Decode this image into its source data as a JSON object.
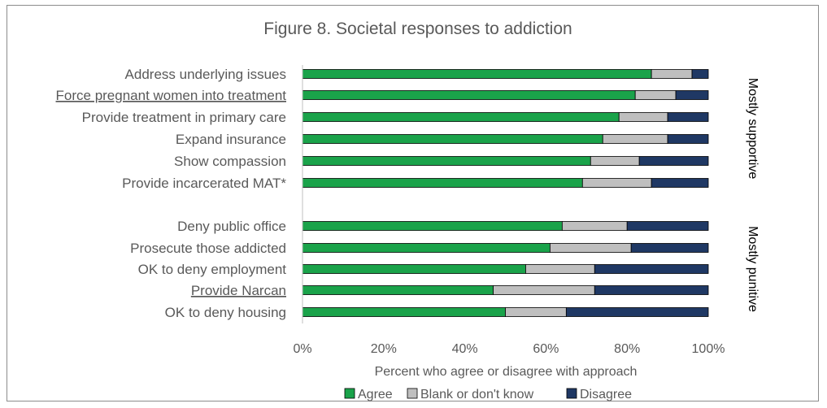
{
  "chart_data": {
    "type": "bar",
    "orientation": "horizontal",
    "stacked": true,
    "title": "Figure 8. Societal responses to addiction",
    "xlabel": "Percent who agree or disagree with approach",
    "ylabel": "",
    "xlim": [
      0,
      100
    ],
    "xticks": [
      "0%",
      "20%",
      "40%",
      "60%",
      "80%",
      "100%"
    ],
    "grid": false,
    "legend_position": "bottom",
    "categories": [
      "Address underlying issues",
      "Force pregnant women into treatment",
      "Provide treatment in primary care",
      "Expand insurance",
      "Show compassion",
      "Provide incarcerated MAT*",
      "Deny public office",
      "Prosecute those addicted",
      "OK to deny employment",
      "Provide Narcan",
      "OK to deny housing"
    ],
    "underlined_categories": [
      "Force pregnant women into treatment",
      "Provide Narcan"
    ],
    "series": [
      {
        "name": "Agree",
        "color": "#1aa34a",
        "values": [
          86,
          82,
          78,
          74,
          71,
          69,
          64,
          61,
          55,
          47,
          50
        ]
      },
      {
        "name": "Blank or don't know",
        "color": "#bfbfbf",
        "values": [
          10,
          10,
          12,
          16,
          12,
          17,
          16,
          20,
          17,
          25,
          15
        ]
      },
      {
        "name": "Disagree",
        "color": "#1f3864",
        "values": [
          4,
          8,
          10,
          10,
          17,
          14,
          20,
          19,
          28,
          28,
          35
        ]
      }
    ],
    "groups": [
      {
        "label": "Mostly supportive",
        "categories": [
          0,
          1,
          2,
          3,
          4,
          5
        ]
      },
      {
        "label": "Mostly punitive",
        "categories": [
          6,
          7,
          8,
          9,
          10
        ]
      }
    ]
  }
}
